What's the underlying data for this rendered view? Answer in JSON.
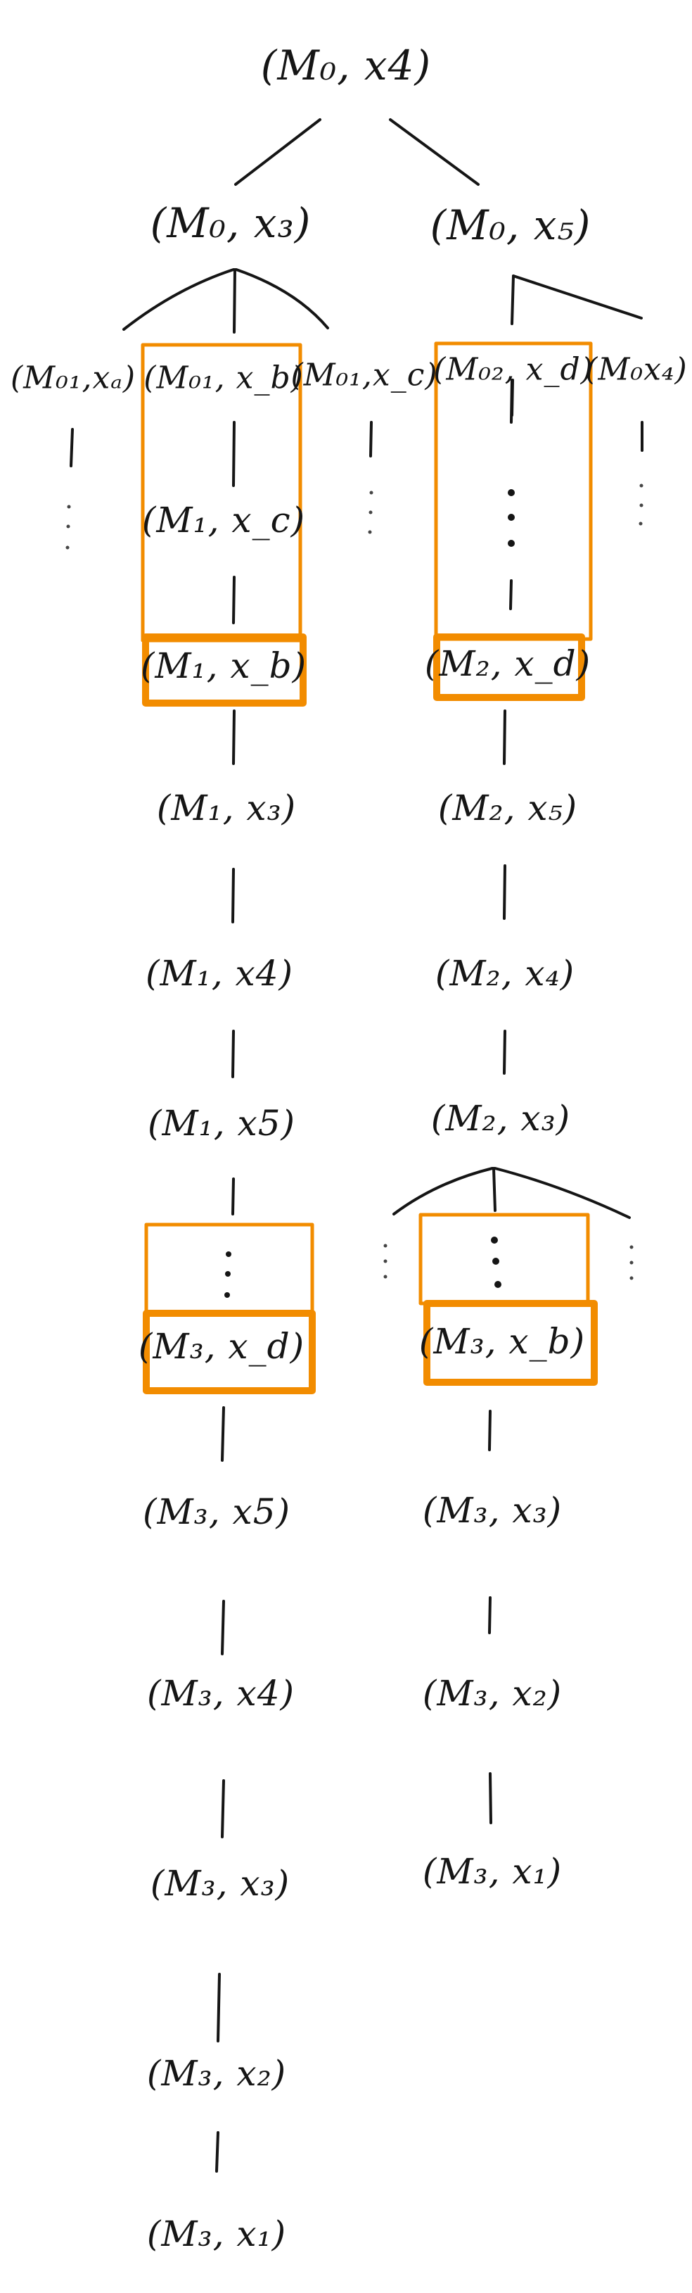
{
  "colors": {
    "ink": "#151515",
    "highlight": "#f28c00"
  },
  "nodes": {
    "root": "(M₀, x4)",
    "l1_left": "(M₀, x₃)",
    "l1_right": "(M₀, x₅)",
    "l2_a": "(M₀₁,xₐ)",
    "l2_b": "(M₀₁, x_b)",
    "l2_c": "(M₀₁,x_c)",
    "l2_d": "(M₀₂, x_d)",
    "l2_e": "(M₀x₄)",
    "left_m1_c": "(M₁, x_c)",
    "left_m1_b": "(M₁, x_b)",
    "left_m1_3": "(M₁, x₃)",
    "left_m1_4": "(M₁, x4)",
    "left_m1_5": "(M₁, x5)",
    "left_m3_d": "(M₃, x_d)",
    "left_m3_5": "(M₃, x5)",
    "left_m3_4": "(M₃, x4)",
    "left_m3_3": "(M₃, x₃)",
    "left_m3_2": "(M₃, x₂)",
    "left_m3_1": "(M₃, x₁)",
    "right_m2_d": "(M₂, x_d)",
    "right_m2_5": "(M₂, x₅)",
    "right_m2_4": "(M₂, x₄)",
    "right_m2_3": "(M₂, x₃)",
    "right_m3_b": "(M₃, x_b)",
    "right_m3_3": "(M₃, x₃)",
    "right_m3_2": "(M₃, x₂)",
    "right_m3_1": "(M₃, x₁)"
  }
}
